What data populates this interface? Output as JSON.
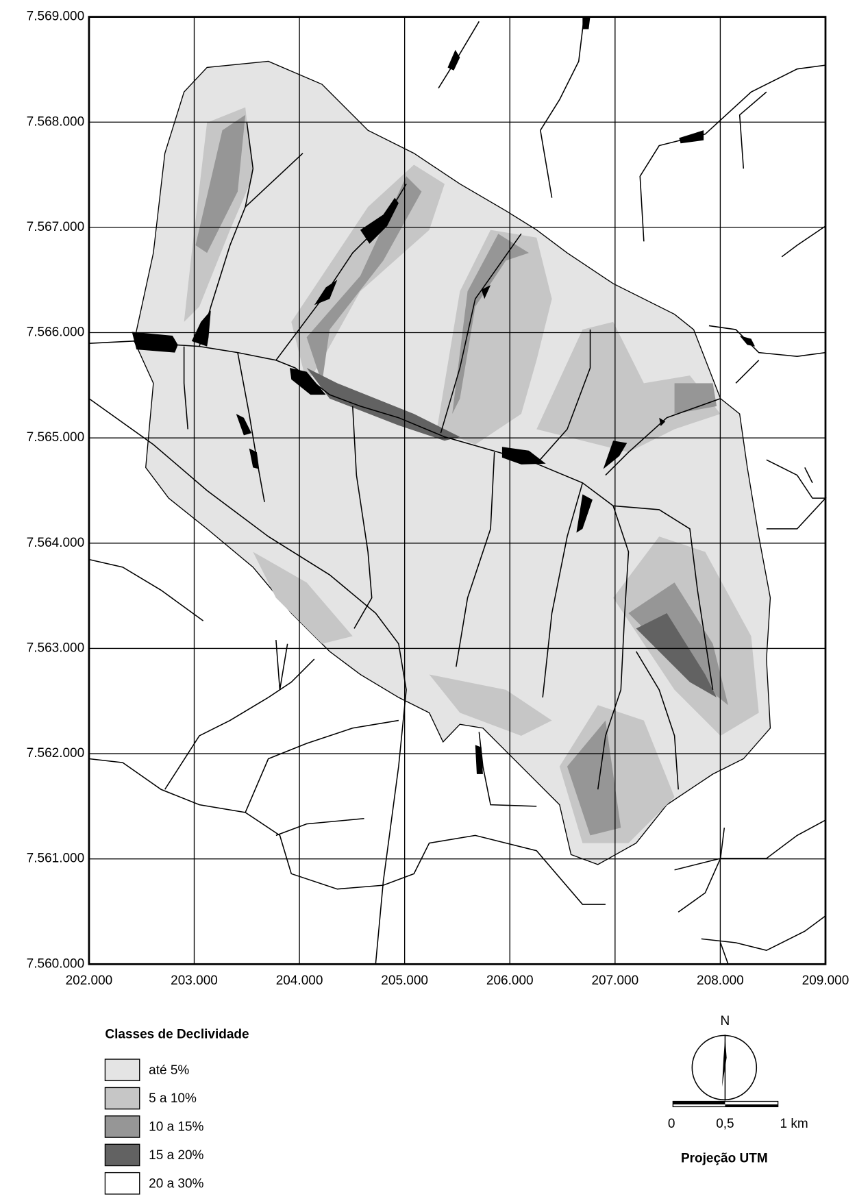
{
  "map": {
    "xlim": [
      202000,
      209000
    ],
    "ylim": [
      7560000,
      7569000
    ],
    "xticks": [
      {
        "value": 202000,
        "label": "202.000"
      },
      {
        "value": 203000,
        "label": "203.000"
      },
      {
        "value": 204000,
        "label": "204.000"
      },
      {
        "value": 205000,
        "label": "205.000"
      },
      {
        "value": 206000,
        "label": "206.000"
      },
      {
        "value": 207000,
        "label": "207.000"
      },
      {
        "value": 208000,
        "label": "208.000"
      },
      {
        "value": 209000,
        "label": "209.000"
      }
    ],
    "yticks": [
      {
        "value": 7560000,
        "label": "7.560.000"
      },
      {
        "value": 7561000,
        "label": "7.561.000"
      },
      {
        "value": 7562000,
        "label": "7.562.000"
      },
      {
        "value": 7563000,
        "label": "7.563.000"
      },
      {
        "value": 7564000,
        "label": "7.564.000"
      },
      {
        "value": 7565000,
        "label": "7.565.000"
      },
      {
        "value": 7566000,
        "label": "7.566.000"
      },
      {
        "value": 7567000,
        "label": "7.567.000"
      },
      {
        "value": 7568000,
        "label": "7.568.000"
      },
      {
        "value": 7569000,
        "label": "7.569.000"
      }
    ],
    "legend": {
      "title": "Classes de Declividade",
      "items": [
        {
          "label": "até 5%",
          "color": "#e4e4e4"
        },
        {
          "label": "5 a 10%",
          "color": "#c6c6c6"
        },
        {
          "label": "10 a 15%",
          "color": "#969696"
        },
        {
          "label": "15 a 20%",
          "color": "#626262"
        },
        {
          "label": "20 a 30%",
          "color": "#ffffff"
        }
      ]
    },
    "north": "N",
    "scale_bar": {
      "labels": [
        "0",
        "0,5",
        "1 km"
      ]
    },
    "projection": "Projeção UTM"
  }
}
